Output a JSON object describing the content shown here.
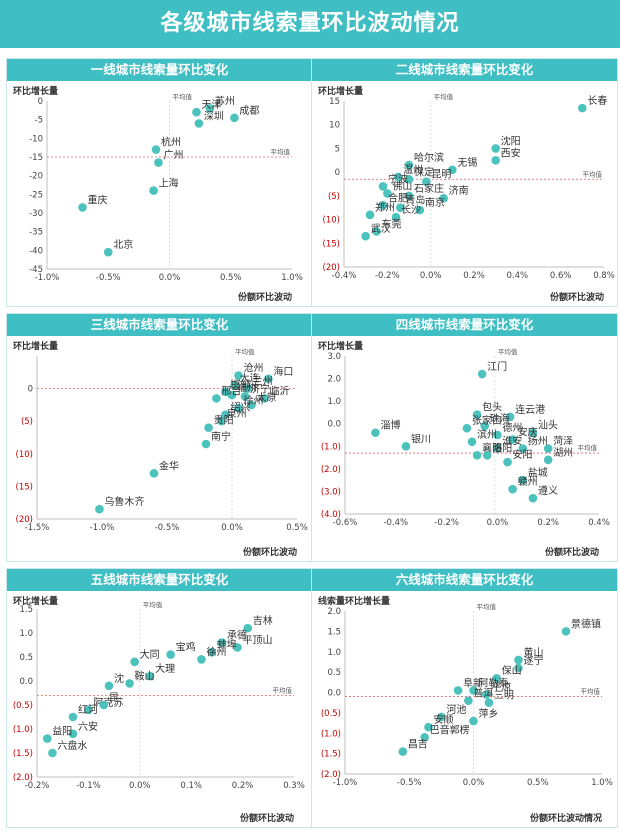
{
  "page_title": "各级城市线索量环比波动情况",
  "colors": {
    "accent": "#3fbfc3",
    "point": "#4cc2bd",
    "avg_line": "#e06666",
    "negative_tick": "#c00000",
    "axis": "#bfbfbf"
  },
  "chart_data": [
    {
      "id": "tier1",
      "type": "scatter",
      "title": "一线城市线索量环比变化",
      "ylabel": "环比增长量",
      "xlabel": "份额环比波动",
      "xlim": [
        -1.0,
        1.0
      ],
      "xticks": [
        -1.0,
        -0.5,
        0.0,
        0.5,
        1.0
      ],
      "ylim": [
        -45,
        0
      ],
      "yticks": [
        -45,
        -40,
        -35,
        -30,
        -25,
        -20,
        -15,
        -10,
        -5,
        0
      ],
      "x_fmt": "pct1",
      "y_fmt": "int",
      "neg_red": false,
      "avg": {
        "x": 0.0,
        "y": -15,
        "x_label": "平均值",
        "y_label": "平均值"
      },
      "points": [
        {
          "name": "苏州",
          "x": 0.33,
          "y": -2
        },
        {
          "name": "天津",
          "x": 0.22,
          "y": -3
        },
        {
          "name": "深圳",
          "x": 0.24,
          "y": -6
        },
        {
          "name": "成都",
          "x": 0.53,
          "y": -4.5
        },
        {
          "name": "杭州",
          "x": -0.11,
          "y": -13
        },
        {
          "name": "广州",
          "x": -0.09,
          "y": -16.5
        },
        {
          "name": "上海",
          "x": -0.13,
          "y": -24
        },
        {
          "name": "重庆",
          "x": -0.71,
          "y": -28.5
        },
        {
          "name": "北京",
          "x": -0.5,
          "y": -40.5
        }
      ]
    },
    {
      "id": "tier2",
      "type": "scatter",
      "title": "二线城市线索量环比变化",
      "ylabel": "环比增长量",
      "xlabel": "份额环比波动",
      "xlim": [
        -0.4,
        0.8
      ],
      "xticks": [
        -0.4,
        -0.2,
        0.0,
        0.2,
        0.4,
        0.6,
        0.8
      ],
      "ylim": [
        -20,
        15
      ],
      "yticks": [
        -20,
        -15,
        -10,
        -5,
        0,
        5,
        10,
        15
      ],
      "x_fmt": "pct1",
      "y_fmt": "paren",
      "neg_red": true,
      "avg": {
        "x": 0.0,
        "y": -1.5,
        "x_label": "平均值",
        "y_label": "平均值"
      },
      "points": [
        {
          "name": "长春",
          "x": 0.7,
          "y": 13.5
        },
        {
          "name": "沈阳",
          "x": 0.3,
          "y": 5
        },
        {
          "name": "西安",
          "x": 0.3,
          "y": 2.5
        },
        {
          "name": "无锡",
          "x": 0.1,
          "y": 0.5
        },
        {
          "name": "哈尔滨",
          "x": -0.1,
          "y": 1.5
        },
        {
          "name": "温州",
          "x": -0.15,
          "y": -1
        },
        {
          "name": "保定",
          "x": -0.1,
          "y": -1.5
        },
        {
          "name": "昆明",
          "x": -0.02,
          "y": -2
        },
        {
          "name": "宁波",
          "x": -0.22,
          "y": -3
        },
        {
          "name": "佛山",
          "x": -0.2,
          "y": -4.5
        },
        {
          "name": "石家庄",
          "x": -0.1,
          "y": -5
        },
        {
          "name": "济南",
          "x": 0.06,
          "y": -5.5
        },
        {
          "name": "合肥",
          "x": -0.22,
          "y": -7
        },
        {
          "name": "青岛",
          "x": -0.14,
          "y": -7.5
        },
        {
          "name": "南京",
          "x": -0.05,
          "y": -8
        },
        {
          "name": "郑州",
          "x": -0.28,
          "y": -9
        },
        {
          "name": "长沙",
          "x": -0.16,
          "y": -9.5
        },
        {
          "name": "东莞",
          "x": -0.25,
          "y": -12.5
        },
        {
          "name": "武汉",
          "x": -0.3,
          "y": -13.5
        }
      ]
    },
    {
      "id": "tier3",
      "type": "scatter",
      "title": "三线城市线索量环比变化",
      "ylabel": "环比增长量",
      "xlabel": "份额环比波动",
      "xlim": [
        -1.5,
        0.5
      ],
      "xticks": [
        -1.5,
        -1.0,
        -0.5,
        0.0,
        0.5
      ],
      "ylim": [
        -20,
        5
      ],
      "yticks": [
        -20,
        -15,
        -10,
        -5,
        0
      ],
      "x_fmt": "pct1",
      "y_fmt": "paren",
      "neg_red": true,
      "avg": {
        "x": 0.0,
        "y": 0,
        "x_label": "平均值",
        "y_label": ""
      },
      "points": [
        {
          "name": "沧州",
          "x": 0.05,
          "y": 2
        },
        {
          "name": "海口",
          "x": 0.28,
          "y": 1.5
        },
        {
          "name": "大连",
          "x": 0.02,
          "y": 0.5
        },
        {
          "name": "兰州",
          "x": 0.12,
          "y": 0
        },
        {
          "name": "邯郸",
          "x": -0.05,
          "y": -0.5
        },
        {
          "name": "福州",
          "x": 0.0,
          "y": -1
        },
        {
          "name": "济宁",
          "x": 0.1,
          "y": -1.2
        },
        {
          "name": "邢台",
          "x": -0.12,
          "y": -1.5
        },
        {
          "name": "临沂",
          "x": 0.25,
          "y": -1.5
        },
        {
          "name": "太原",
          "x": 0.15,
          "y": -2.5
        },
        {
          "name": "徐州",
          "x": 0.05,
          "y": -3
        },
        {
          "name": "绍兴",
          "x": -0.05,
          "y": -4
        },
        {
          "name": "泉州",
          "x": -0.08,
          "y": -5
        },
        {
          "name": "贵阳",
          "x": -0.18,
          "y": -6
        },
        {
          "name": "南宁",
          "x": -0.2,
          "y": -8.5
        },
        {
          "name": "金华",
          "x": -0.6,
          "y": -13
        },
        {
          "name": "乌鲁木齐",
          "x": -1.02,
          "y": -18.5
        }
      ]
    },
    {
      "id": "tier4",
      "type": "scatter",
      "title": "四线城市线索量环比变化",
      "ylabel": "环比增长量",
      "xlabel": "份额环比波动",
      "xlim": [
        -0.6,
        0.4
      ],
      "xticks": [
        -0.6,
        -0.4,
        -0.2,
        0.0,
        0.2,
        0.4
      ],
      "ylim": [
        -4.0,
        3.0
      ],
      "yticks": [
        -4.0,
        -3.0,
        -2.0,
        -1.0,
        0.0,
        1.0,
        2.0,
        3.0
      ],
      "x_fmt": "pct1",
      "y_fmt": "paren1",
      "neg_red": true,
      "avg": {
        "x": -0.01,
        "y": -1.3,
        "x_label": "平均值",
        "y_label": "平均值"
      },
      "points": [
        {
          "name": "江门",
          "x": -0.06,
          "y": 2.2
        },
        {
          "name": "包头",
          "x": -0.08,
          "y": 0.4
        },
        {
          "name": "连云港",
          "x": 0.05,
          "y": 0.3
        },
        {
          "name": "淄博",
          "x": -0.48,
          "y": -0.4
        },
        {
          "name": "珠海",
          "x": -0.05,
          "y": -0.1
        },
        {
          "name": "张家口",
          "x": -0.12,
          "y": -0.2
        },
        {
          "name": "德州",
          "x": 0.0,
          "y": -0.5
        },
        {
          "name": "汕头",
          "x": 0.14,
          "y": -0.4
        },
        {
          "name": "滨州",
          "x": -0.1,
          "y": -0.8
        },
        {
          "name": "安庆",
          "x": 0.06,
          "y": -0.7
        },
        {
          "name": "银川",
          "x": -0.36,
          "y": -1.0
        },
        {
          "name": "淮安",
          "x": 0.0,
          "y": -1.1
        },
        {
          "name": "扬州",
          "x": 0.1,
          "y": -1.1
        },
        {
          "name": "菏泽",
          "x": 0.2,
          "y": -1.1
        },
        {
          "name": "襄阳",
          "x": -0.08,
          "y": -1.4
        },
        {
          "name": "洛阳",
          "x": -0.04,
          "y": -1.4
        },
        {
          "name": "安阳",
          "x": 0.04,
          "y": -1.7
        },
        {
          "name": "湖州",
          "x": 0.2,
          "y": -1.6
        },
        {
          "name": "盐城",
          "x": 0.1,
          "y": -2.5
        },
        {
          "name": "赣州",
          "x": 0.06,
          "y": -2.9
        },
        {
          "name": "遵义",
          "x": 0.14,
          "y": -3.3
        }
      ]
    },
    {
      "id": "tier5",
      "type": "scatter",
      "title": "五线城市线索量环比变化",
      "ylabel": "环比增长量",
      "xlabel": "份额环比波动",
      "xlim": [
        -0.2,
        0.3
      ],
      "xticks": [
        -0.2,
        -0.1,
        0.0,
        0.1,
        0.2,
        0.3
      ],
      "ylim": [
        -2.0,
        1.5
      ],
      "yticks": [
        -2.0,
        -1.5,
        -1.0,
        -0.5,
        0.0,
        0.5,
        1.0,
        1.5
      ],
      "x_fmt": "pct1",
      "y_fmt": "paren1",
      "neg_red": true,
      "avg": {
        "x": 0.0,
        "y": -0.3,
        "x_label": "平均值",
        "y_label": "平均值"
      },
      "points": [
        {
          "name": "吉林",
          "x": 0.21,
          "y": 1.1
        },
        {
          "name": "承德",
          "x": 0.16,
          "y": 0.8
        },
        {
          "name": "平顶山",
          "x": 0.19,
          "y": 0.7
        },
        {
          "name": "蚌埠",
          "x": 0.14,
          "y": 0.6
        },
        {
          "name": "徐州",
          "x": 0.12,
          "y": 0.45
        },
        {
          "name": "宝鸡",
          "x": 0.06,
          "y": 0.55
        },
        {
          "name": "大同",
          "x": -0.01,
          "y": 0.4
        },
        {
          "name": "大理",
          "x": 0.02,
          "y": 0.1
        },
        {
          "name": "鞍山",
          "x": -0.02,
          "y": -0.05
        },
        {
          "name": "沈",
          "x": -0.06,
          "y": -0.1
        },
        {
          "name": "阿克苏",
          "x": -0.1,
          "y": -0.6
        },
        {
          "name": "昆",
          "x": -0.07,
          "y": -0.5
        },
        {
          "name": "红河",
          "x": -0.13,
          "y": -0.75
        },
        {
          "name": "六安",
          "x": -0.13,
          "y": -1.1
        },
        {
          "name": "益阳",
          "x": -0.18,
          "y": -1.2
        },
        {
          "name": "六盘水",
          "x": -0.17,
          "y": -1.5
        }
      ]
    },
    {
      "id": "tier6",
      "type": "scatter",
      "title": "六线城市线索量环比变化",
      "ylabel": "线索量环比增长量",
      "xlabel": "份额环比波动情况",
      "xlim": [
        -1.0,
        1.0
      ],
      "xticks": [
        -1.0,
        -0.5,
        0.0,
        0.5,
        1.0
      ],
      "ylim": [
        -2.0,
        2.0
      ],
      "yticks": [
        -2.0,
        -1.5,
        -1.0,
        -0.5,
        0.0,
        0.5,
        1.0,
        1.5,
        2.0
      ],
      "x_fmt": "pct1",
      "y_fmt": "paren1",
      "neg_red": true,
      "avg": {
        "x": 0.0,
        "y": -0.1,
        "x_label": "平均值",
        "y_label": "平均值"
      },
      "points": [
        {
          "name": "景德镇",
          "x": 0.72,
          "y": 1.5
        },
        {
          "name": "黄山",
          "x": 0.35,
          "y": 0.8
        },
        {
          "name": "遂宁",
          "x": 0.35,
          "y": 0.6
        },
        {
          "name": "保山",
          "x": 0.18,
          "y": 0.35
        },
        {
          "name": "阜新",
          "x": -0.12,
          "y": 0.05
        },
        {
          "name": "阿勒泰",
          "x": 0.0,
          "y": 0.05
        },
        {
          "name": "平凉",
          "x": 0.1,
          "y": -0.05
        },
        {
          "name": "普洱",
          "x": -0.04,
          "y": -0.2
        },
        {
          "name": "三明",
          "x": 0.12,
          "y": -0.25
        },
        {
          "name": "河池",
          "x": -0.25,
          "y": -0.6
        },
        {
          "name": "萍乡",
          "x": 0.0,
          "y": -0.7
        },
        {
          "name": "安顺",
          "x": -0.35,
          "y": -0.85
        },
        {
          "name": "巴音郭楞",
          "x": -0.38,
          "y": -1.1
        },
        {
          "name": "昌吉",
          "x": -0.55,
          "y": -1.45
        }
      ]
    }
  ]
}
